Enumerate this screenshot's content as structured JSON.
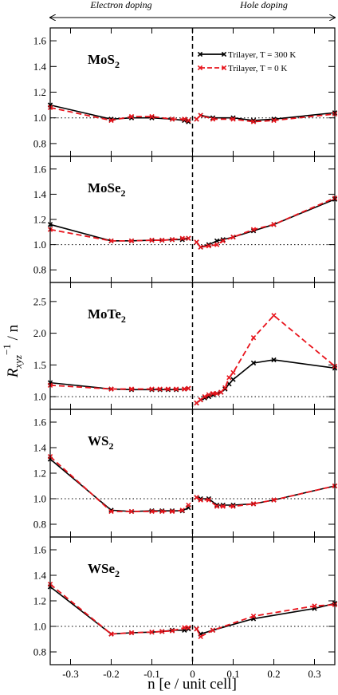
{
  "header": {
    "left_label": "Electron doping",
    "right_label": "Hole doping"
  },
  "xlabel": "n   [e / unit cell]",
  "ylabel": {
    "main": "R",
    "sub": "xyz",
    "sup": "−1",
    "suffix": " / n"
  },
  "colors": {
    "trilayer_300K": "#000000",
    "trilayer_0K": "#e8141c"
  },
  "legend": [
    {
      "label": "Trilayer, T = 300 K",
      "color": "#000000",
      "dash": false
    },
    {
      "label": "Trilayer, T = 0 K",
      "color": "#e8141c",
      "dash": true
    }
  ],
  "chart_data": [
    {
      "type": "line",
      "title_main": "MoS",
      "title_sub": "2",
      "xlim": [
        -0.35,
        0.35
      ],
      "ylim": [
        0.7,
        1.7
      ],
      "yticks": [
        0.8,
        1.0,
        1.2,
        1.4,
        1.6
      ],
      "reference_line": 1.0,
      "series": [
        {
          "name": "Trilayer, T = 300 K",
          "x": [
            -0.35,
            -0.2,
            -0.15,
            -0.1,
            -0.05,
            -0.02,
            -0.01,
            0.01,
            0.02,
            0.05,
            0.1,
            0.15,
            0.2,
            0.35
          ],
          "y": [
            1.1,
            0.99,
            1.0,
            1.0,
            0.99,
            0.98,
            0.97,
            0.99,
            1.02,
            1.0,
            1.0,
            0.98,
            0.99,
            1.04
          ]
        },
        {
          "name": "Trilayer, T = 0 K",
          "x": [
            -0.35,
            -0.2,
            -0.15,
            -0.1,
            -0.05,
            -0.02,
            -0.01,
            0.01,
            0.02,
            0.05,
            0.1,
            0.15,
            0.2,
            0.35
          ],
          "y": [
            1.08,
            0.98,
            1.01,
            1.01,
            0.99,
            0.99,
            0.98,
            0.99,
            1.02,
            0.99,
            0.99,
            0.97,
            0.98,
            1.03
          ]
        }
      ]
    },
    {
      "type": "line",
      "title_main": "MoSe",
      "title_sub": "2",
      "xlim": [
        -0.35,
        0.35
      ],
      "ylim": [
        0.7,
        1.7
      ],
      "yticks": [
        0.8,
        1.0,
        1.2,
        1.4,
        1.6
      ],
      "reference_line": 1.0,
      "series": [
        {
          "name": "Trilayer, T = 300 K",
          "x": [
            -0.35,
            -0.2,
            -0.15,
            -0.1,
            -0.075,
            -0.05,
            -0.025,
            -0.01,
            0.01,
            0.02,
            0.04,
            0.06,
            0.075,
            0.1,
            0.15,
            0.2,
            0.35
          ],
          "y": [
            1.16,
            1.03,
            1.03,
            1.035,
            1.035,
            1.04,
            1.04,
            1.05,
            1.02,
            0.98,
            1.0,
            1.03,
            1.04,
            1.06,
            1.11,
            1.16,
            1.36
          ]
        },
        {
          "name": "Trilayer, T = 0 K",
          "x": [
            -0.35,
            -0.2,
            -0.15,
            -0.1,
            -0.075,
            -0.05,
            -0.025,
            -0.01,
            0.01,
            0.02,
            0.04,
            0.06,
            0.075,
            0.1,
            0.15,
            0.2,
            0.35
          ],
          "y": [
            1.12,
            1.03,
            1.03,
            1.035,
            1.035,
            1.04,
            1.05,
            1.05,
            1.02,
            0.98,
            0.99,
            1.0,
            1.03,
            1.06,
            1.12,
            1.16,
            1.37
          ]
        }
      ]
    },
    {
      "type": "line",
      "title_main": "MoTe",
      "title_sub": "2",
      "xlim": [
        -0.35,
        0.35
      ],
      "ylim": [
        0.8,
        2.8
      ],
      "yticks": [
        1.0,
        1.5,
        2.0,
        2.5
      ],
      "reference_line": 1.0,
      "series": [
        {
          "name": "Trilayer, T = 300 K",
          "x": [
            -0.35,
            -0.2,
            -0.15,
            -0.1,
            -0.08,
            -0.06,
            -0.04,
            -0.02,
            -0.01,
            0.01,
            0.02,
            0.03,
            0.04,
            0.05,
            0.06,
            0.07,
            0.08,
            0.09,
            0.1,
            0.15,
            0.2,
            0.35
          ],
          "y": [
            1.22,
            1.12,
            1.11,
            1.11,
            1.11,
            1.11,
            1.11,
            1.12,
            1.13,
            0.9,
            0.95,
            0.98,
            1.0,
            1.03,
            1.05,
            1.07,
            1.12,
            1.2,
            1.27,
            1.53,
            1.58,
            1.45
          ]
        },
        {
          "name": "Trilayer, T = 0 K",
          "x": [
            -0.35,
            -0.2,
            -0.15,
            -0.1,
            -0.08,
            -0.06,
            -0.04,
            -0.02,
            -0.01,
            0.01,
            0.02,
            0.03,
            0.04,
            0.05,
            0.06,
            0.07,
            0.08,
            0.09,
            0.1,
            0.15,
            0.2,
            0.35
          ],
          "y": [
            1.18,
            1.12,
            1.12,
            1.12,
            1.12,
            1.12,
            1.12,
            1.12,
            1.13,
            0.9,
            0.95,
            1.0,
            1.03,
            1.05,
            1.05,
            1.07,
            1.14,
            1.3,
            1.38,
            1.93,
            2.28,
            1.48
          ]
        }
      ]
    },
    {
      "type": "line",
      "title_main": "WS",
      "title_sub": "2",
      "xlim": [
        -0.35,
        0.35
      ],
      "ylim": [
        0.7,
        1.7
      ],
      "yticks": [
        0.8,
        1.0,
        1.2,
        1.4,
        1.6
      ],
      "reference_line": 1.0,
      "series": [
        {
          "name": "Trilayer, T = 300 K",
          "x": [
            -0.35,
            -0.2,
            -0.15,
            -0.1,
            -0.075,
            -0.05,
            -0.025,
            -0.01,
            0.01,
            0.02,
            0.04,
            0.06,
            0.075,
            0.1,
            0.15,
            0.2,
            0.35
          ],
          "y": [
            1.31,
            0.91,
            0.9,
            0.905,
            0.905,
            0.905,
            0.905,
            0.93,
            1.01,
            1.0,
            1.0,
            0.95,
            0.95,
            0.95,
            0.96,
            0.99,
            1.1
          ]
        },
        {
          "name": "Trilayer, T = 0 K",
          "x": [
            -0.35,
            -0.2,
            -0.15,
            -0.1,
            -0.075,
            -0.05,
            -0.025,
            -0.01,
            0.01,
            0.02,
            0.04,
            0.06,
            0.075,
            0.1,
            0.15,
            0.2,
            0.35
          ],
          "y": [
            1.33,
            0.9,
            0.9,
            0.9,
            0.9,
            0.9,
            0.91,
            0.95,
            1.01,
            0.99,
            0.99,
            0.94,
            0.94,
            0.94,
            0.96,
            0.99,
            1.1
          ]
        }
      ]
    },
    {
      "type": "line",
      "title_main": "WSe",
      "title_sub": "2",
      "xlim": [
        -0.35,
        0.35
      ],
      "ylim": [
        0.7,
        1.7
      ],
      "yticks": [
        0.8,
        1.0,
        1.2,
        1.4,
        1.6
      ],
      "reference_line": 1.0,
      "series": [
        {
          "name": "Trilayer, T = 300 K",
          "x": [
            -0.35,
            -0.2,
            -0.15,
            -0.1,
            -0.075,
            -0.05,
            -0.02,
            -0.01,
            0.01,
            0.02,
            0.05,
            0.15,
            0.3,
            0.35
          ],
          "y": [
            1.31,
            0.94,
            0.95,
            0.955,
            0.96,
            0.97,
            0.97,
            0.98,
            0.98,
            0.94,
            0.97,
            1.06,
            1.14,
            1.18
          ]
        },
        {
          "name": "Trilayer, T = 0 K",
          "x": [
            -0.35,
            -0.2,
            -0.15,
            -0.1,
            -0.075,
            -0.05,
            -0.02,
            -0.01,
            0.01,
            0.02,
            0.05,
            0.15,
            0.3,
            0.35
          ],
          "y": [
            1.33,
            0.94,
            0.95,
            0.955,
            0.96,
            0.965,
            0.99,
            0.99,
            0.98,
            0.92,
            0.97,
            1.08,
            1.16,
            1.17
          ]
        }
      ]
    }
  ],
  "xaxis": {
    "ticks": [
      -0.3,
      -0.2,
      -0.1,
      0,
      0.1,
      0.2,
      0.3
    ],
    "tick_labels": [
      "-0.3",
      "-0.2",
      "-0.1",
      "0",
      "0.1",
      "0.2",
      "0.3"
    ]
  }
}
